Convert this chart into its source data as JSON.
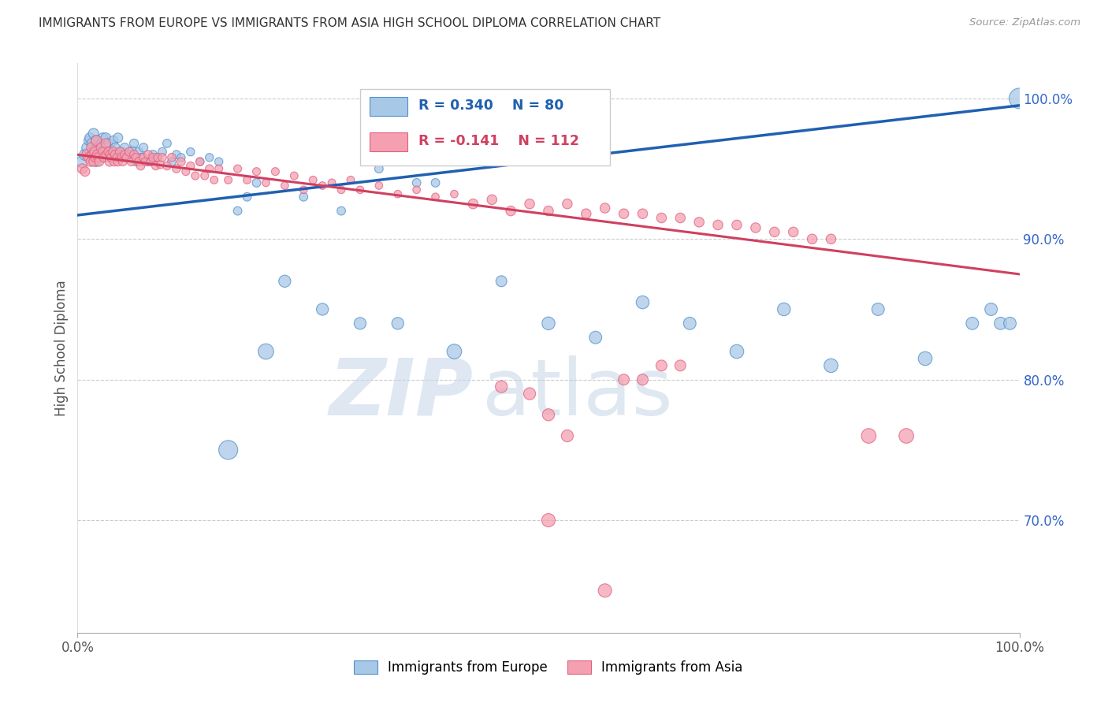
{
  "title": "IMMIGRANTS FROM EUROPE VS IMMIGRANTS FROM ASIA HIGH SCHOOL DIPLOMA CORRELATION CHART",
  "source": "Source: ZipAtlas.com",
  "ylabel": "High School Diploma",
  "right_yticks": [
    70.0,
    80.0,
    90.0,
    100.0
  ],
  "legend_blue_r": "R = 0.340",
  "legend_blue_n": "N = 80",
  "legend_pink_r": "R = -0.141",
  "legend_pink_n": "N = 112",
  "legend_label_blue": "Immigrants from Europe",
  "legend_label_pink": "Immigrants from Asia",
  "blue_fill": "#a8c8e8",
  "pink_fill": "#f4a0b0",
  "blue_edge": "#5090c8",
  "pink_edge": "#e06080",
  "blue_line_color": "#2060b0",
  "pink_line_color": "#d04060",
  "right_axis_color": "#3366cc",
  "blue_scatter_x": [
    0.005,
    0.008,
    0.01,
    0.012,
    0.013,
    0.015,
    0.016,
    0.017,
    0.018,
    0.019,
    0.02,
    0.02,
    0.022,
    0.023,
    0.025,
    0.027,
    0.028,
    0.03,
    0.03,
    0.032,
    0.033,
    0.035,
    0.036,
    0.038,
    0.04,
    0.042,
    0.043,
    0.045,
    0.047,
    0.05,
    0.052,
    0.055,
    0.058,
    0.06,
    0.062,
    0.065,
    0.068,
    0.07,
    0.075,
    0.08,
    0.085,
    0.09,
    0.095,
    0.1,
    0.105,
    0.11,
    0.12,
    0.13,
    0.14,
    0.15,
    0.16,
    0.17,
    0.18,
    0.19,
    0.2,
    0.22,
    0.24,
    0.26,
    0.28,
    0.3,
    0.32,
    0.34,
    0.36,
    0.38,
    0.4,
    0.45,
    0.5,
    0.55,
    0.6,
    0.65,
    0.7,
    0.75,
    0.8,
    0.85,
    0.9,
    0.95,
    0.97,
    0.98,
    0.99,
    1.0
  ],
  "blue_scatter_y": [
    0.955,
    0.96,
    0.965,
    0.97,
    0.972,
    0.968,
    0.962,
    0.975,
    0.958,
    0.963,
    0.97,
    0.955,
    0.965,
    0.96,
    0.968,
    0.972,
    0.958,
    0.965,
    0.972,
    0.96,
    0.968,
    0.958,
    0.963,
    0.97,
    0.965,
    0.96,
    0.972,
    0.958,
    0.962,
    0.965,
    0.958,
    0.96,
    0.963,
    0.968,
    0.955,
    0.962,
    0.958,
    0.965,
    0.955,
    0.96,
    0.958,
    0.962,
    0.968,
    0.955,
    0.96,
    0.958,
    0.962,
    0.955,
    0.958,
    0.955,
    0.75,
    0.92,
    0.93,
    0.94,
    0.82,
    0.87,
    0.93,
    0.85,
    0.92,
    0.84,
    0.95,
    0.84,
    0.94,
    0.94,
    0.82,
    0.87,
    0.84,
    0.83,
    0.855,
    0.84,
    0.82,
    0.85,
    0.81,
    0.85,
    0.815,
    0.84,
    0.85,
    0.84,
    0.84,
    1.0
  ],
  "blue_scatter_s": [
    120,
    110,
    90,
    80,
    80,
    80,
    75,
    90,
    75,
    80,
    90,
    80,
    80,
    75,
    80,
    80,
    75,
    80,
    80,
    75,
    75,
    70,
    75,
    75,
    75,
    70,
    75,
    70,
    70,
    70,
    65,
    65,
    65,
    65,
    60,
    65,
    60,
    65,
    60,
    65,
    60,
    60,
    60,
    60,
    60,
    55,
    55,
    55,
    55,
    55,
    300,
    60,
    60,
    60,
    200,
    120,
    60,
    120,
    60,
    120,
    60,
    120,
    60,
    60,
    180,
    100,
    140,
    130,
    140,
    130,
    160,
    140,
    160,
    130,
    160,
    130,
    130,
    130,
    130,
    350
  ],
  "pink_scatter_x": [
    0.005,
    0.008,
    0.01,
    0.012,
    0.014,
    0.015,
    0.016,
    0.017,
    0.018,
    0.019,
    0.02,
    0.021,
    0.022,
    0.023,
    0.025,
    0.027,
    0.028,
    0.03,
    0.031,
    0.033,
    0.034,
    0.035,
    0.036,
    0.038,
    0.039,
    0.04,
    0.042,
    0.043,
    0.045,
    0.047,
    0.048,
    0.05,
    0.052,
    0.055,
    0.057,
    0.06,
    0.062,
    0.065,
    0.067,
    0.07,
    0.072,
    0.075,
    0.078,
    0.08,
    0.083,
    0.085,
    0.088,
    0.09,
    0.095,
    0.1,
    0.105,
    0.11,
    0.115,
    0.12,
    0.125,
    0.13,
    0.135,
    0.14,
    0.145,
    0.15,
    0.16,
    0.17,
    0.18,
    0.19,
    0.2,
    0.21,
    0.22,
    0.23,
    0.24,
    0.25,
    0.26,
    0.27,
    0.28,
    0.29,
    0.3,
    0.32,
    0.34,
    0.36,
    0.38,
    0.4,
    0.42,
    0.44,
    0.46,
    0.48,
    0.5,
    0.52,
    0.54,
    0.56,
    0.58,
    0.6,
    0.62,
    0.64,
    0.66,
    0.68,
    0.7,
    0.72,
    0.74,
    0.76,
    0.78,
    0.8,
    0.84,
    0.88,
    0.5,
    0.52,
    0.45,
    0.48,
    0.58,
    0.6,
    0.62,
    0.64,
    0.5,
    0.56
  ],
  "pink_scatter_y": [
    0.95,
    0.948,
    0.96,
    0.958,
    0.955,
    0.965,
    0.96,
    0.955,
    0.962,
    0.958,
    0.97,
    0.96,
    0.958,
    0.955,
    0.965,
    0.962,
    0.958,
    0.968,
    0.96,
    0.962,
    0.955,
    0.96,
    0.958,
    0.962,
    0.955,
    0.96,
    0.958,
    0.955,
    0.962,
    0.958,
    0.955,
    0.96,
    0.958,
    0.962,
    0.955,
    0.96,
    0.958,
    0.955,
    0.952,
    0.958,
    0.955,
    0.96,
    0.955,
    0.958,
    0.952,
    0.958,
    0.953,
    0.958,
    0.952,
    0.958,
    0.95,
    0.955,
    0.948,
    0.952,
    0.945,
    0.955,
    0.945,
    0.95,
    0.942,
    0.95,
    0.942,
    0.95,
    0.942,
    0.948,
    0.94,
    0.948,
    0.938,
    0.945,
    0.935,
    0.942,
    0.938,
    0.94,
    0.935,
    0.942,
    0.935,
    0.938,
    0.932,
    0.935,
    0.93,
    0.932,
    0.925,
    0.928,
    0.92,
    0.925,
    0.92,
    0.925,
    0.918,
    0.922,
    0.918,
    0.918,
    0.915,
    0.915,
    0.912,
    0.91,
    0.91,
    0.908,
    0.905,
    0.905,
    0.9,
    0.9,
    0.76,
    0.76,
    0.775,
    0.76,
    0.795,
    0.79,
    0.8,
    0.8,
    0.81,
    0.81,
    0.7,
    0.65
  ],
  "pink_scatter_s": [
    80,
    75,
    90,
    80,
    75,
    90,
    80,
    75,
    80,
    75,
    90,
    80,
    75,
    70,
    80,
    75,
    70,
    80,
    75,
    75,
    70,
    75,
    70,
    75,
    65,
    70,
    65,
    65,
    70,
    65,
    60,
    65,
    60,
    65,
    60,
    65,
    60,
    60,
    58,
    60,
    58,
    60,
    58,
    60,
    55,
    58,
    55,
    58,
    55,
    58,
    55,
    58,
    52,
    55,
    52,
    55,
    52,
    55,
    50,
    52,
    50,
    52,
    50,
    52,
    48,
    52,
    48,
    50,
    48,
    50,
    48,
    50,
    48,
    50,
    48,
    48,
    48,
    48,
    48,
    48,
    80,
    80,
    80,
    80,
    80,
    80,
    80,
    80,
    80,
    80,
    80,
    80,
    80,
    80,
    80,
    80,
    80,
    80,
    80,
    80,
    180,
    180,
    120,
    120,
    120,
    120,
    100,
    100,
    100,
    100,
    150,
    150
  ],
  "blue_line_x": [
    0.0,
    1.0
  ],
  "blue_line_y": [
    0.917,
    0.995
  ],
  "pink_line_x": [
    0.0,
    1.0
  ],
  "pink_line_y": [
    0.96,
    0.875
  ],
  "xmin": 0.0,
  "xmax": 1.0,
  "ymin": 0.62,
  "ymax": 1.025
}
